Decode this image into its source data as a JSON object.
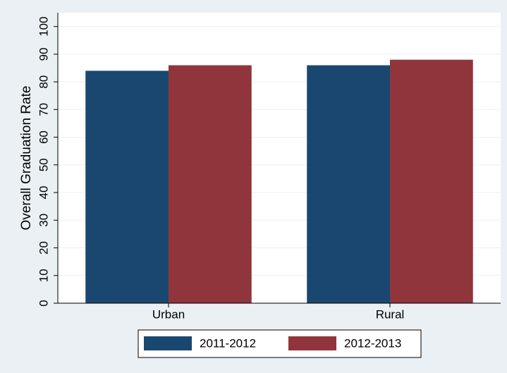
{
  "chart_data": {
    "type": "bar",
    "y_label": "Overall Graduation Rate",
    "categories": [
      "Urban",
      "Rural"
    ],
    "series": [
      {
        "name": "2011-2012",
        "color": "#1a476f",
        "values": [
          84,
          86
        ]
      },
      {
        "name": "2012-2013",
        "color": "#90353b",
        "values": [
          86,
          88
        ]
      }
    ],
    "ylim": [
      0,
      105
    ],
    "yticks": [
      0,
      10,
      20,
      30,
      40,
      50,
      60,
      70,
      80,
      90,
      100
    ],
    "grid": true
  }
}
